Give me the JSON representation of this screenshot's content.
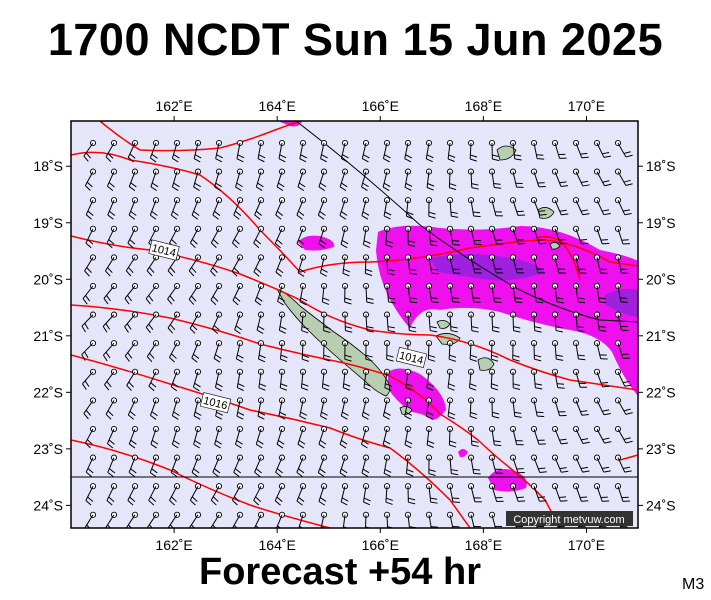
{
  "title": "1700 NCDT Sun 15 Jun 2025",
  "footer": "Forecast +54 hr",
  "model_code": "M3",
  "copyright": "Copyright metvuw.com",
  "colors": {
    "ocean": "#e6e6fb",
    "land": "#b7cfb0",
    "precip_light": "#ee11ee",
    "precip_heavy": "#a020e0",
    "isobar": "#ff0000",
    "border": "#000000"
  },
  "map": {
    "lon_range": [
      160.0,
      171.0
    ],
    "lat_range": [
      -24.4,
      -17.2
    ],
    "lon_ticks": [
      {
        "value": 162,
        "label": "162˚E"
      },
      {
        "value": 164,
        "label": "164˚E"
      },
      {
        "value": 166,
        "label": "166˚E"
      },
      {
        "value": 168,
        "label": "168˚E"
      },
      {
        "value": 170,
        "label": "170˚E"
      }
    ],
    "lat_ticks": [
      {
        "value": -18,
        "label": "18˚S"
      },
      {
        "value": -19,
        "label": "19˚S"
      },
      {
        "value": -20,
        "label": "20˚S"
      },
      {
        "value": -21,
        "label": "21˚S"
      },
      {
        "value": -22,
        "label": "22˚S"
      },
      {
        "value": -23,
        "label": "23˚S"
      },
      {
        "value": -24,
        "label": "24˚S"
      }
    ],
    "isobar_labels": [
      {
        "text": "1014",
        "lon": 161.8,
        "lat": -19.5
      },
      {
        "text": "1014",
        "lon": 166.6,
        "lat": -21.4
      },
      {
        "text": "1016",
        "lon": 162.8,
        "lat": -22.2
      }
    ]
  }
}
